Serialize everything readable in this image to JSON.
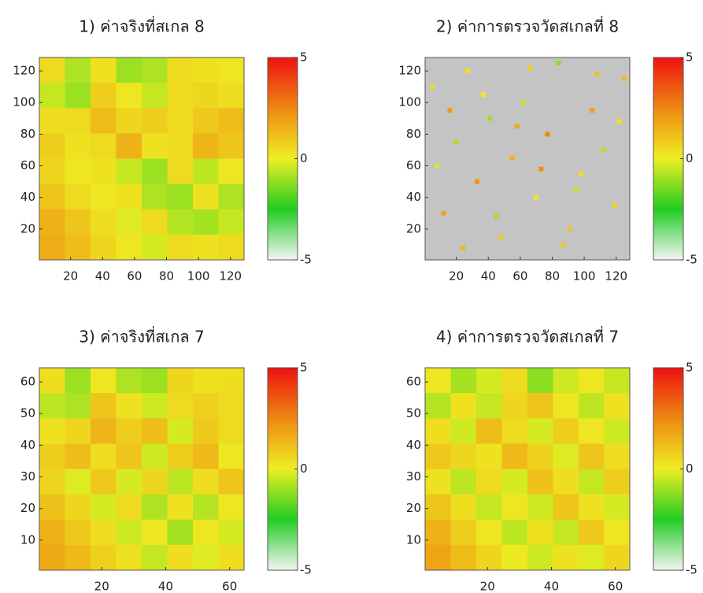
{
  "chart_data": [
    {
      "type": "heatmap",
      "title": "1) ค่าจริงที่สเกล 8",
      "xlim": [
        0.5,
        128.5
      ],
      "ylim": [
        0.5,
        128.5
      ],
      "xticks": [
        20,
        40,
        60,
        80,
        100,
        120
      ],
      "yticks": [
        20,
        40,
        60,
        80,
        100,
        120
      ],
      "clim": [
        -5,
        5
      ],
      "cticks": [
        -5,
        0,
        5
      ],
      "colormap": [
        "#f4f4f4",
        "#22cc22",
        "#eeee22",
        "#ee8811",
        "#ee1111"
      ],
      "z": [
        [
          0.5,
          -0.8,
          0.3,
          -1,
          -0.8,
          0.5,
          0.3,
          0.2
        ],
        [
          -0.5,
          -1,
          0.8,
          0.2,
          -0.5,
          0.5,
          0.6,
          0.4
        ],
        [
          0.4,
          0.5,
          1.2,
          0.6,
          0.8,
          0.5,
          0.9,
          1.2
        ],
        [
          0.8,
          0.3,
          0.5,
          1.5,
          0.3,
          0.5,
          1.4,
          1.0
        ],
        [
          0.6,
          0.2,
          0.3,
          -0.5,
          -1,
          0.5,
          -0.6,
          0.2
        ],
        [
          1.0,
          0.5,
          0.2,
          0.3,
          -0.8,
          -1,
          0.3,
          -0.8
        ],
        [
          1.5,
          1.0,
          0.4,
          -0.2,
          0.5,
          -0.7,
          -0.9,
          -0.5
        ],
        [
          1.6,
          1.2,
          0.6,
          0.2,
          -0.3,
          0.5,
          0.3,
          0.5
        ]
      ]
    },
    {
      "type": "scatter",
      "title": "2) ค่าการตรวจวัดสเกลที่ 8",
      "xlim": [
        0.5,
        128.5
      ],
      "ylim": [
        0.5,
        128.5
      ],
      "xticks": [
        20,
        40,
        60,
        80,
        100,
        120
      ],
      "yticks": [
        20,
        40,
        60,
        80,
        100,
        120
      ],
      "clim": [
        -5,
        5
      ],
      "cticks": [
        -5,
        0,
        5
      ],
      "colormap": [
        "#f4f4f4",
        "#22cc22",
        "#eeee22",
        "#ee8811",
        "#ee1111"
      ],
      "background": "#c4c4c4",
      "x": [
        5,
        12,
        20,
        27,
        33,
        41,
        48,
        55,
        62,
        70,
        77,
        84,
        91,
        98,
        105,
        112,
        119,
        125,
        8,
        16,
        24,
        37,
        45,
        58,
        66,
        73,
        87,
        95,
        108,
        122
      ],
      "y": [
        110,
        30,
        75,
        120,
        50,
        90,
        15,
        65,
        100,
        40,
        80,
        125,
        20,
        55,
        95,
        70,
        35,
        115,
        60,
        95,
        8,
        105,
        28,
        85,
        122,
        58,
        10,
        45,
        118,
        88
      ],
      "values": [
        0.5,
        1.8,
        -0.8,
        0.3,
        2.2,
        -1.0,
        0.8,
        1.5,
        -0.5,
        0.2,
        2.5,
        -1.2,
        1.0,
        0.4,
        1.9,
        -0.7,
        0.6,
        1.2,
        -0.3,
        2.0,
        1.4,
        0.1,
        -0.9,
        1.7,
        0.7,
        2.3,
        0.9,
        -0.6,
        1.1,
        0.3
      ]
    },
    {
      "type": "heatmap",
      "title": "3) ค่าจริงที่สเกล 7",
      "xlim": [
        0.5,
        64.5
      ],
      "ylim": [
        0.5,
        64.5
      ],
      "xticks": [
        20,
        40,
        60
      ],
      "yticks": [
        10,
        20,
        30,
        40,
        50,
        60
      ],
      "clim": [
        -5,
        5
      ],
      "cticks": [
        -5,
        0,
        5
      ],
      "colormap": [
        "#f4f4f4",
        "#22cc22",
        "#eeee22",
        "#ee8811",
        "#ee1111"
      ],
      "z": [
        [
          0.4,
          -1,
          0.2,
          -0.8,
          -1,
          0.6,
          0.3,
          0.4
        ],
        [
          -0.6,
          -0.8,
          1.0,
          0.3,
          -0.4,
          0.5,
          0.7,
          0.5
        ],
        [
          0.3,
          0.6,
          1.4,
          0.8,
          1.2,
          -0.3,
          0.9,
          0.5
        ],
        [
          0.8,
          1.2,
          0.4,
          1.0,
          -0.4,
          0.8,
          1.3,
          0.2
        ],
        [
          0.6,
          -0.2,
          0.9,
          -0.3,
          0.6,
          -0.6,
          0.4,
          1.0
        ],
        [
          1.1,
          0.6,
          -0.3,
          0.5,
          -0.8,
          0.3,
          -0.7,
          0.2
        ],
        [
          1.5,
          0.9,
          0.4,
          -0.4,
          0.2,
          -0.9,
          0.2,
          -0.3
        ],
        [
          1.7,
          1.3,
          0.7,
          0.3,
          -0.5,
          0.4,
          -0.2,
          0.4
        ]
      ]
    },
    {
      "type": "heatmap",
      "title": "4) ค่าการตรวจวัดสเกลที่ 7",
      "xlim": [
        0.5,
        64.5
      ],
      "ylim": [
        0.5,
        64.5
      ],
      "xticks": [
        20,
        40,
        60
      ],
      "yticks": [
        10,
        20,
        30,
        40,
        50,
        60
      ],
      "clim": [
        -5,
        5
      ],
      "cticks": [
        -5,
        0,
        5
      ],
      "colormap": [
        "#f4f4f4",
        "#22cc22",
        "#eeee22",
        "#ee8811",
        "#ee1111"
      ],
      "z": [
        [
          0.2,
          -0.9,
          -0.3,
          0.5,
          -1.2,
          -0.4,
          0.2,
          -0.5
        ],
        [
          -0.7,
          0.3,
          -0.5,
          0.6,
          1.0,
          0.2,
          -0.6,
          0.3
        ],
        [
          0.4,
          -0.4,
          1.2,
          0.5,
          -0.3,
          0.8,
          0.2,
          -0.4
        ],
        [
          0.9,
          0.6,
          0.3,
          1.3,
          0.7,
          -0.2,
          1.0,
          0.4
        ],
        [
          0.3,
          -0.6,
          0.5,
          -0.3,
          1.1,
          0.4,
          -0.5,
          0.8
        ],
        [
          1.0,
          0.4,
          -0.5,
          0.2,
          -0.4,
          1.0,
          0.3,
          -0.3
        ],
        [
          1.5,
          0.8,
          0.2,
          -0.6,
          0.3,
          -0.5,
          0.9,
          0.2
        ],
        [
          1.8,
          1.2,
          0.6,
          0.1,
          -0.4,
          0.3,
          -0.2,
          0.6
        ]
      ]
    }
  ]
}
